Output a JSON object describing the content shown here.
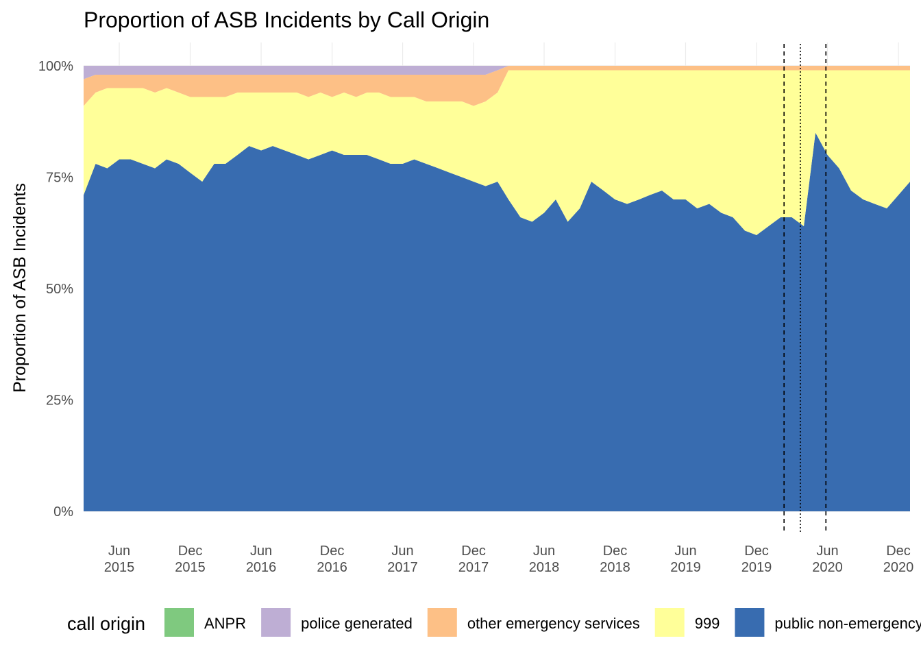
{
  "chart_data": {
    "type": "area",
    "stacked": true,
    "normalized": true,
    "title": "Proportion of ASB Incidents by Call Origin",
    "xlabel": "",
    "ylabel": "Proportion of ASB Incidents",
    "x_range": [
      "2015-03-01",
      "2020-12-31"
    ],
    "ylim": [
      0,
      1
    ],
    "y_ticks": [
      {
        "value": 0,
        "label": "0%"
      },
      {
        "value": 0.25,
        "label": "25%"
      },
      {
        "value": 0.5,
        "label": "50%"
      },
      {
        "value": 0.75,
        "label": "75%"
      },
      {
        "value": 1,
        "label": "100%"
      }
    ],
    "x_ticks": [
      {
        "date": "2015-06-01",
        "label": [
          "Jun",
          "2015"
        ]
      },
      {
        "date": "2015-12-01",
        "label": [
          "Dec",
          "2015"
        ]
      },
      {
        "date": "2016-06-01",
        "label": [
          "Jun",
          "2016"
        ]
      },
      {
        "date": "2016-12-01",
        "label": [
          "Dec",
          "2016"
        ]
      },
      {
        "date": "2017-06-01",
        "label": [
          "Jun",
          "2017"
        ]
      },
      {
        "date": "2017-12-01",
        "label": [
          "Dec",
          "2017"
        ]
      },
      {
        "date": "2018-06-01",
        "label": [
          "Jun",
          "2018"
        ]
      },
      {
        "date": "2018-12-01",
        "label": [
          "Dec",
          "2018"
        ]
      },
      {
        "date": "2019-06-01",
        "label": [
          "Jun",
          "2019"
        ]
      },
      {
        "date": "2019-12-01",
        "label": [
          "Dec",
          "2019"
        ]
      },
      {
        "date": "2020-06-01",
        "label": [
          "Jun",
          "2020"
        ]
      },
      {
        "date": "2020-12-01",
        "label": [
          "Dec",
          "2020"
        ]
      }
    ],
    "grid": true,
    "legend_position": "bottom",
    "legend_title": "call origin",
    "reference_lines": [
      {
        "date": "2020-02-10",
        "style": "dashed"
      },
      {
        "date": "2020-03-23",
        "style": "dotted"
      },
      {
        "date": "2020-05-28",
        "style": "dashed"
      }
    ],
    "x": [
      "2015-03-01",
      "2015-04-01",
      "2015-05-01",
      "2015-06-01",
      "2015-07-01",
      "2015-08-01",
      "2015-09-01",
      "2015-10-01",
      "2015-11-01",
      "2015-12-01",
      "2016-01-01",
      "2016-02-01",
      "2016-03-01",
      "2016-04-01",
      "2016-05-01",
      "2016-06-01",
      "2016-07-01",
      "2016-08-01",
      "2016-09-01",
      "2016-10-01",
      "2016-11-01",
      "2016-12-01",
      "2017-01-01",
      "2017-02-01",
      "2017-03-01",
      "2017-04-01",
      "2017-05-01",
      "2017-06-01",
      "2017-07-01",
      "2017-08-01",
      "2017-09-01",
      "2017-10-01",
      "2017-11-01",
      "2017-12-01",
      "2018-01-01",
      "2018-02-01",
      "2018-03-01",
      "2018-04-01",
      "2018-05-01",
      "2018-06-01",
      "2018-07-01",
      "2018-08-01",
      "2018-09-01",
      "2018-10-01",
      "2018-11-01",
      "2018-12-01",
      "2019-01-01",
      "2019-02-01",
      "2019-03-01",
      "2019-04-01",
      "2019-05-01",
      "2019-06-01",
      "2019-07-01",
      "2019-08-01",
      "2019-09-01",
      "2019-10-01",
      "2019-11-01",
      "2019-12-01",
      "2020-01-01",
      "2020-02-01",
      "2020-03-01",
      "2020-04-01",
      "2020-05-01",
      "2020-06-01",
      "2020-07-01",
      "2020-08-01",
      "2020-09-01",
      "2020-10-01",
      "2020-11-01",
      "2020-12-01"
    ],
    "series": [
      {
        "name": "public non-emergency",
        "color": "#386cb0",
        "values": [
          0.71,
          0.78,
          0.77,
          0.79,
          0.79,
          0.78,
          0.77,
          0.79,
          0.78,
          0.76,
          0.74,
          0.78,
          0.78,
          0.8,
          0.82,
          0.81,
          0.82,
          0.81,
          0.8,
          0.79,
          0.8,
          0.81,
          0.8,
          0.8,
          0.8,
          0.79,
          0.78,
          0.78,
          0.79,
          0.78,
          0.77,
          0.76,
          0.75,
          0.74,
          0.73,
          0.74,
          0.7,
          0.66,
          0.65,
          0.67,
          0.7,
          0.65,
          0.68,
          0.74,
          0.72,
          0.7,
          0.69,
          0.7,
          0.71,
          0.72,
          0.7,
          0.7,
          0.68,
          0.69,
          0.67,
          0.66,
          0.63,
          0.62,
          0.64,
          0.66,
          0.66,
          0.64,
          0.85,
          0.8,
          0.77,
          0.72,
          0.7,
          0.69,
          0.68,
          0.74
        ]
      },
      {
        "name": "999",
        "color": "#ffff99",
        "values": [
          0.2,
          0.16,
          0.18,
          0.16,
          0.16,
          0.17,
          0.17,
          0.16,
          0.16,
          0.17,
          0.19,
          0.15,
          0.15,
          0.14,
          0.12,
          0.13,
          0.12,
          0.13,
          0.14,
          0.14,
          0.14,
          0.12,
          0.14,
          0.13,
          0.14,
          0.15,
          0.15,
          0.15,
          0.14,
          0.14,
          0.15,
          0.16,
          0.17,
          0.17,
          0.19,
          0.2,
          0.29,
          0.33,
          0.34,
          0.32,
          0.29,
          0.34,
          0.31,
          0.25,
          0.27,
          0.29,
          0.3,
          0.29,
          0.28,
          0.27,
          0.29,
          0.29,
          0.31,
          0.3,
          0.32,
          0.33,
          0.36,
          0.37,
          0.35,
          0.33,
          0.33,
          0.35,
          0.14,
          0.19,
          0.22,
          0.27,
          0.29,
          0.3,
          0.31,
          0.25
        ]
      },
      {
        "name": "other emergency services",
        "color": "#fdc086",
        "values": [
          0.06,
          0.04,
          0.03,
          0.03,
          0.03,
          0.03,
          0.04,
          0.03,
          0.04,
          0.05,
          0.05,
          0.05,
          0.05,
          0.04,
          0.04,
          0.04,
          0.04,
          0.04,
          0.04,
          0.05,
          0.04,
          0.05,
          0.04,
          0.05,
          0.04,
          0.04,
          0.05,
          0.05,
          0.05,
          0.06,
          0.06,
          0.06,
          0.06,
          0.07,
          0.06,
          0.05,
          0.01,
          0.01,
          0.01,
          0.01,
          0.01,
          0.01,
          0.01,
          0.01,
          0.01,
          0.01,
          0.01,
          0.01,
          0.01,
          0.01,
          0.01,
          0.01,
          0.01,
          0.01,
          0.01,
          0.01,
          0.01,
          0.01,
          0.01,
          0.01,
          0.01,
          0.01,
          0.01,
          0.01,
          0.01,
          0.01,
          0.01,
          0.01,
          0.01,
          0.01
        ]
      },
      {
        "name": "police generated",
        "color": "#beaed4",
        "values": [
          0.03,
          0.02,
          0.02,
          0.02,
          0.02,
          0.02,
          0.02,
          0.02,
          0.02,
          0.02,
          0.02,
          0.02,
          0.02,
          0.02,
          0.02,
          0.02,
          0.02,
          0.02,
          0.02,
          0.02,
          0.02,
          0.02,
          0.02,
          0.02,
          0.02,
          0.02,
          0.02,
          0.02,
          0.02,
          0.02,
          0.02,
          0.02,
          0.02,
          0.02,
          0.02,
          0.01,
          0.0,
          0.0,
          0.0,
          0.0,
          0.0,
          0.0,
          0.0,
          0.0,
          0.0,
          0.0,
          0.0,
          0.0,
          0.0,
          0.0,
          0.0,
          0.0,
          0.0,
          0.0,
          0.0,
          0.0,
          0.0,
          0.0,
          0.0,
          0.0,
          0.0,
          0.0,
          0.0,
          0.0,
          0.0,
          0.0,
          0.0,
          0.0,
          0.0,
          0.0
        ]
      },
      {
        "name": "ANPR",
        "color": "#7fc97f",
        "values": [
          0,
          0,
          0,
          0,
          0,
          0,
          0,
          0,
          0,
          0,
          0,
          0,
          0,
          0,
          0,
          0,
          0,
          0,
          0,
          0,
          0,
          0,
          0,
          0,
          0,
          0,
          0,
          0,
          0,
          0,
          0,
          0,
          0,
          0,
          0,
          0,
          0,
          0,
          0,
          0,
          0,
          0,
          0,
          0,
          0,
          0,
          0,
          0,
          0,
          0,
          0,
          0,
          0,
          0,
          0,
          0,
          0,
          0,
          0,
          0,
          0,
          0,
          0,
          0,
          0,
          0,
          0,
          0,
          0,
          0
        ]
      }
    ],
    "legend_entries": [
      {
        "label": "ANPR",
        "color": "#7fc97f"
      },
      {
        "label": "police generated",
        "color": "#beaed4"
      },
      {
        "label": "other emergency services",
        "color": "#fdc086"
      },
      {
        "label": "999",
        "color": "#ffff99"
      },
      {
        "label": "public non-emergency",
        "color": "#386cb0"
      }
    ]
  }
}
